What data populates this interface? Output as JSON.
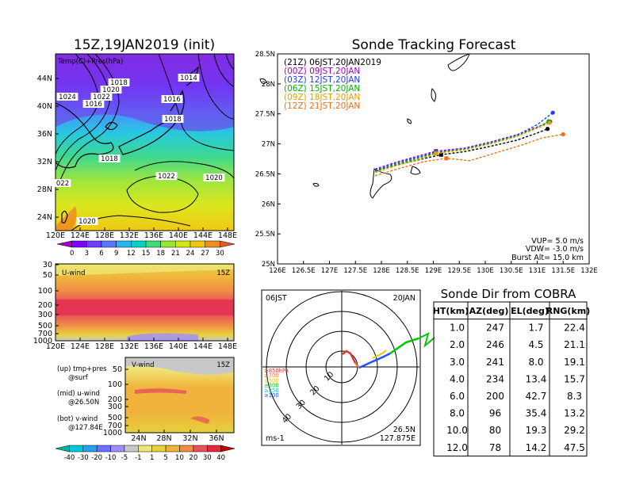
{
  "left_title": "15Z,19JAN2019 (init)",
  "map_panel": {
    "label": "Temp(C)+Pres(hPa)",
    "lat_ticks": [
      "44N",
      "40N",
      "36N",
      "32N",
      "28N",
      "24N"
    ],
    "lon_ticks": [
      "120E",
      "124E",
      "128E",
      "132E",
      "136E",
      "140E",
      "144E",
      "148E"
    ],
    "isobar_labels": [
      "1018",
      "1020",
      "1022",
      "1024",
      "1016",
      "1014",
      "1016",
      "1018",
      "1018",
      "1022",
      "1020",
      "1020",
      "022"
    ],
    "colorbar_ticks": [
      "0",
      "3",
      "6",
      "9",
      "12",
      "15",
      "18",
      "21",
      "24",
      "27",
      "30"
    ],
    "colorbar_colors": [
      "#a000c8",
      "#7d00ff",
      "#6e3cff",
      "#5a78ff",
      "#28b4f0",
      "#00d2c8",
      "#3cdc78",
      "#96e632",
      "#d2e614",
      "#f0c814",
      "#f08c1e",
      "#e65a28"
    ]
  },
  "u_panel": {
    "label": "U-wind",
    "time": "15Z",
    "p_ticks": [
      "30",
      "50",
      "100",
      "200",
      "300",
      "500",
      "700",
      "1000"
    ],
    "lon_ticks": [
      "120E",
      "124E",
      "128E",
      "132E",
      "136E",
      "140E",
      "144E",
      "148E"
    ]
  },
  "v_panel": {
    "label": "V-wind",
    "time": "15Z",
    "p_ticks": [
      "50",
      "100",
      "200",
      "300",
      "500",
      "700",
      "1000"
    ],
    "lat_ticks": [
      "24N",
      "28N",
      "32N",
      "36N"
    ]
  },
  "side_notes": {
    "up_line1": "(up) tmp+pres",
    "up_line2": "@surf",
    "mid_line1": "(mid) u-wind",
    "mid_line2": "@26.50N",
    "bot_line1": "(bot) v-wind",
    "bot_line2": "@127.84E"
  },
  "wind_colorbar": {
    "ticks": [
      "-40",
      "-30",
      "-20",
      "-10",
      "-5",
      "-1",
      "1",
      "5",
      "10",
      "20",
      "30",
      "40"
    ],
    "colors": [
      "#00b4a0",
      "#00c8dc",
      "#28a0f0",
      "#6e6eff",
      "#a08cff",
      "#c8c8c8",
      "#f0e678",
      "#e6d23c",
      "#f0b43c",
      "#f08c46",
      "#e6505a",
      "#e6283c",
      "#c80000"
    ]
  },
  "chart_data": {
    "type": "line",
    "title": "Sonde Tracking Forecast",
    "x_axis": {
      "ticks": [
        "126E",
        "126.5E",
        "127E",
        "127.5E",
        "128E",
        "128.5E",
        "129E",
        "129.5E",
        "130E",
        "130.5E",
        "131E",
        "131.5E",
        "132E"
      ],
      "range": [
        126,
        132
      ]
    },
    "y_axis": {
      "ticks": [
        "25N",
        "25.5N",
        "26N",
        "26.5N",
        "27N",
        "27.5N",
        "28N",
        "28.5N"
      ],
      "range": [
        25,
        28.5
      ]
    },
    "legend": [
      {
        "label": "(21Z)  06JST,20JAN2019",
        "color": "#000000"
      },
      {
        "label": "(00Z)  09JST,20JAN",
        "color": "#a000c8"
      },
      {
        "label": "(03Z)  12JST,20JAN",
        "color": "#1e3cff"
      },
      {
        "label": "(06Z)  15JST,20JAN",
        "color": "#00b400"
      },
      {
        "label": "(09Z)  18JST,20JAN",
        "color": "#e6a000"
      },
      {
        "label": "(12Z)  21JST,20JAN",
        "color": "#f06e14"
      }
    ],
    "series": [
      {
        "color": "#000000",
        "x": [
          127.88,
          128.3,
          128.8,
          129.15,
          129.6,
          130.1,
          130.6,
          131.0,
          131.2
        ],
        "y": [
          26.55,
          26.65,
          26.75,
          26.82,
          26.87,
          26.96,
          27.06,
          27.18,
          27.25
        ]
      },
      {
        "color": "#a000c8",
        "x": [
          127.88,
          128.3,
          128.8,
          129.05,
          129.6,
          130.1,
          130.6,
          131.0,
          131.25
        ],
        "y": [
          26.58,
          26.7,
          26.82,
          26.88,
          26.93,
          27.03,
          27.15,
          27.28,
          27.37
        ]
      },
      {
        "color": "#1e3cff",
        "x": [
          127.88,
          128.3,
          128.8,
          129.05,
          129.6,
          130.1,
          130.6,
          131.0,
          131.3
        ],
        "y": [
          26.56,
          26.68,
          26.8,
          26.86,
          26.92,
          27.02,
          27.14,
          27.32,
          27.52
        ]
      },
      {
        "color": "#00b400",
        "x": [
          127.88,
          128.3,
          128.8,
          129.05,
          129.6,
          130.1,
          130.6,
          131.0,
          131.22
        ],
        "y": [
          26.54,
          26.66,
          26.78,
          26.85,
          26.91,
          27.01,
          27.13,
          27.27,
          27.38
        ]
      },
      {
        "color": "#e6a000",
        "x": [
          127.88,
          128.3,
          128.8,
          129.05,
          129.6,
          130.1,
          130.6,
          131.0,
          131.24
        ],
        "y": [
          26.52,
          26.64,
          26.76,
          26.84,
          26.9,
          27.0,
          27.12,
          27.26,
          27.35
        ]
      },
      {
        "color": "#f06e14",
        "x": [
          127.88,
          128.3,
          128.8,
          129.25,
          129.7,
          130.2,
          130.7,
          131.1,
          131.5
        ],
        "y": [
          26.47,
          26.58,
          26.7,
          26.76,
          26.72,
          26.85,
          26.98,
          27.1,
          27.16
        ]
      }
    ],
    "params": {
      "vup": "VUP=  5.0  m/s",
      "vdw": "VDW= -3.0  m/s",
      "burst": "Burst Alt=  15.0  km"
    }
  },
  "polar_panel": {
    "time_left": "06JST",
    "time_right": "20JAN",
    "ring_labels": [
      "10",
      "20",
      "30",
      "40"
    ],
    "levels": [
      {
        "label": "≥850hPa",
        "color": "#e63232"
      },
      {
        "label": "≥700",
        "color": "#f07828"
      },
      {
        "label": "≥500",
        "color": "#e6c800"
      },
      {
        "label": "≥300",
        "color": "#00c800"
      },
      {
        "label": "≥250",
        "color": "#00c8c8"
      },
      {
        "label": "≥100",
        "color": "#1e50ff"
      }
    ],
    "loc_lat": "26.5N",
    "loc_lon": "127.875E",
    "unit": "ms-1"
  },
  "table": {
    "title": "Sonde Dir from COBRA",
    "headers": [
      "HT(km)",
      "AZ(deg)",
      "EL(deg)",
      "RNG(km)"
    ],
    "rows": [
      [
        "1.0",
        "247",
        "1.7",
        "22.4"
      ],
      [
        "2.0",
        "246",
        "4.5",
        "21.1"
      ],
      [
        "3.0",
        "241",
        "8.0",
        "19.1"
      ],
      [
        "4.0",
        "234",
        "13.4",
        "15.7"
      ],
      [
        "6.0",
        "200",
        "42.7",
        "8.3"
      ],
      [
        "8.0",
        "96",
        "35.4",
        "13.2"
      ],
      [
        "10.0",
        "80",
        "19.3",
        "29.2"
      ],
      [
        "12.0",
        "78",
        "14.2",
        "47.5"
      ]
    ]
  }
}
